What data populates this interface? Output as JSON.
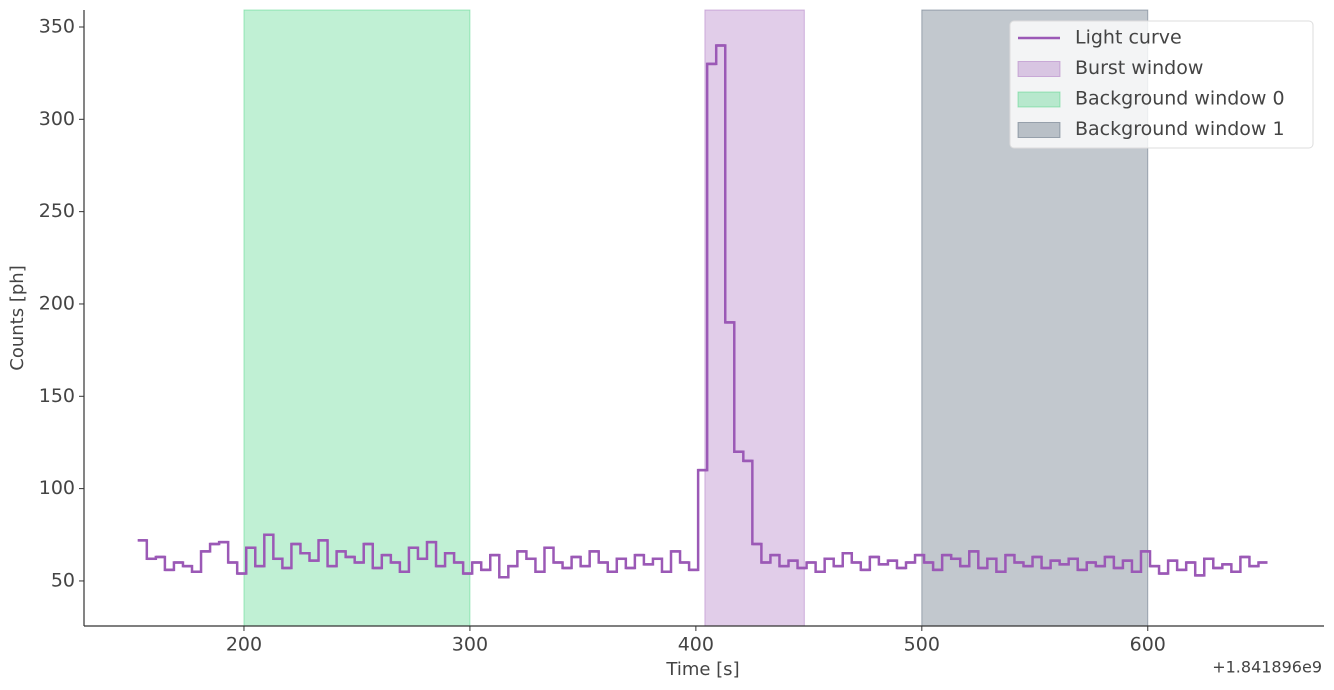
{
  "chart_data": {
    "type": "step",
    "x_label": "Time [s]",
    "y_label": "Counts [ph]",
    "x_offset_label": "+1.841896e9",
    "xlim": [
      129.2,
      678
    ],
    "ylim": [
      25.6,
      359.2
    ],
    "xticks": [
      200,
      300,
      400,
      500,
      600
    ],
    "yticks": [
      50,
      100,
      150,
      200,
      250,
      300,
      350
    ],
    "legend": "upper right",
    "series": [
      {
        "name": "Light curve",
        "color": "#9b59b6",
        "bins": [
          153,
          157,
          161,
          165,
          169,
          173,
          177,
          181,
          185,
          189,
          193,
          197,
          201,
          205,
          209,
          213,
          217,
          221,
          225,
          229,
          233,
          237,
          241,
          245,
          249,
          253,
          257,
          261,
          265,
          269,
          273,
          277,
          281,
          285,
          289,
          293,
          297,
          301,
          305,
          309,
          313,
          317,
          321,
          325,
          329,
          333,
          337,
          341,
          345,
          349,
          353,
          357,
          361,
          365,
          369,
          373,
          377,
          381,
          385,
          389,
          393,
          397,
          401,
          405,
          409,
          413,
          417,
          421,
          425,
          429,
          433,
          437,
          441,
          445,
          449,
          453,
          457,
          461,
          465,
          469,
          473,
          477,
          481,
          485,
          489,
          493,
          497,
          501,
          505,
          509,
          513,
          517,
          521,
          525,
          529,
          533,
          537,
          541,
          545,
          549,
          553,
          557,
          561,
          565,
          569,
          573,
          577,
          581,
          585,
          589,
          593,
          597,
          601,
          605,
          609,
          613,
          617,
          621,
          625,
          629,
          633,
          637,
          641,
          645,
          649,
          653
        ],
        "values": [
          72,
          62,
          63,
          56,
          60,
          58,
          55,
          66,
          70,
          71,
          60,
          54,
          68,
          58,
          75,
          62,
          57,
          70,
          65,
          61,
          72,
          58,
          66,
          63,
          60,
          70,
          57,
          64,
          60,
          55,
          68,
          62,
          71,
          58,
          65,
          60,
          54,
          60,
          56,
          64,
          52,
          58,
          66,
          62,
          55,
          68,
          60,
          57,
          63,
          58,
          66,
          60,
          55,
          62,
          57,
          64,
          59,
          62,
          55,
          66,
          60,
          56,
          110,
          330,
          340,
          190,
          120,
          115,
          70,
          60,
          64,
          58,
          61,
          57,
          60,
          55,
          62,
          58,
          65,
          60,
          56,
          63,
          59,
          61,
          57,
          60,
          64,
          60,
          56,
          64,
          62,
          58,
          66,
          57,
          62,
          55,
          64,
          60,
          58,
          63,
          57,
          61,
          59,
          62,
          56,
          60,
          58,
          63,
          57,
          61,
          55,
          66,
          58,
          54,
          61,
          56,
          60,
          53,
          62,
          57,
          59,
          55,
          63,
          58,
          60
        ]
      }
    ],
    "spans": [
      {
        "name": "Burst window",
        "color": "#9b59b6",
        "start": 404,
        "end": 448
      },
      {
        "name": "Background window 0",
        "color": "#2ecc71",
        "start": 200,
        "end": 300
      },
      {
        "name": "Background window 1",
        "color": "#34495e",
        "start": 500,
        "end": 600
      }
    ]
  }
}
